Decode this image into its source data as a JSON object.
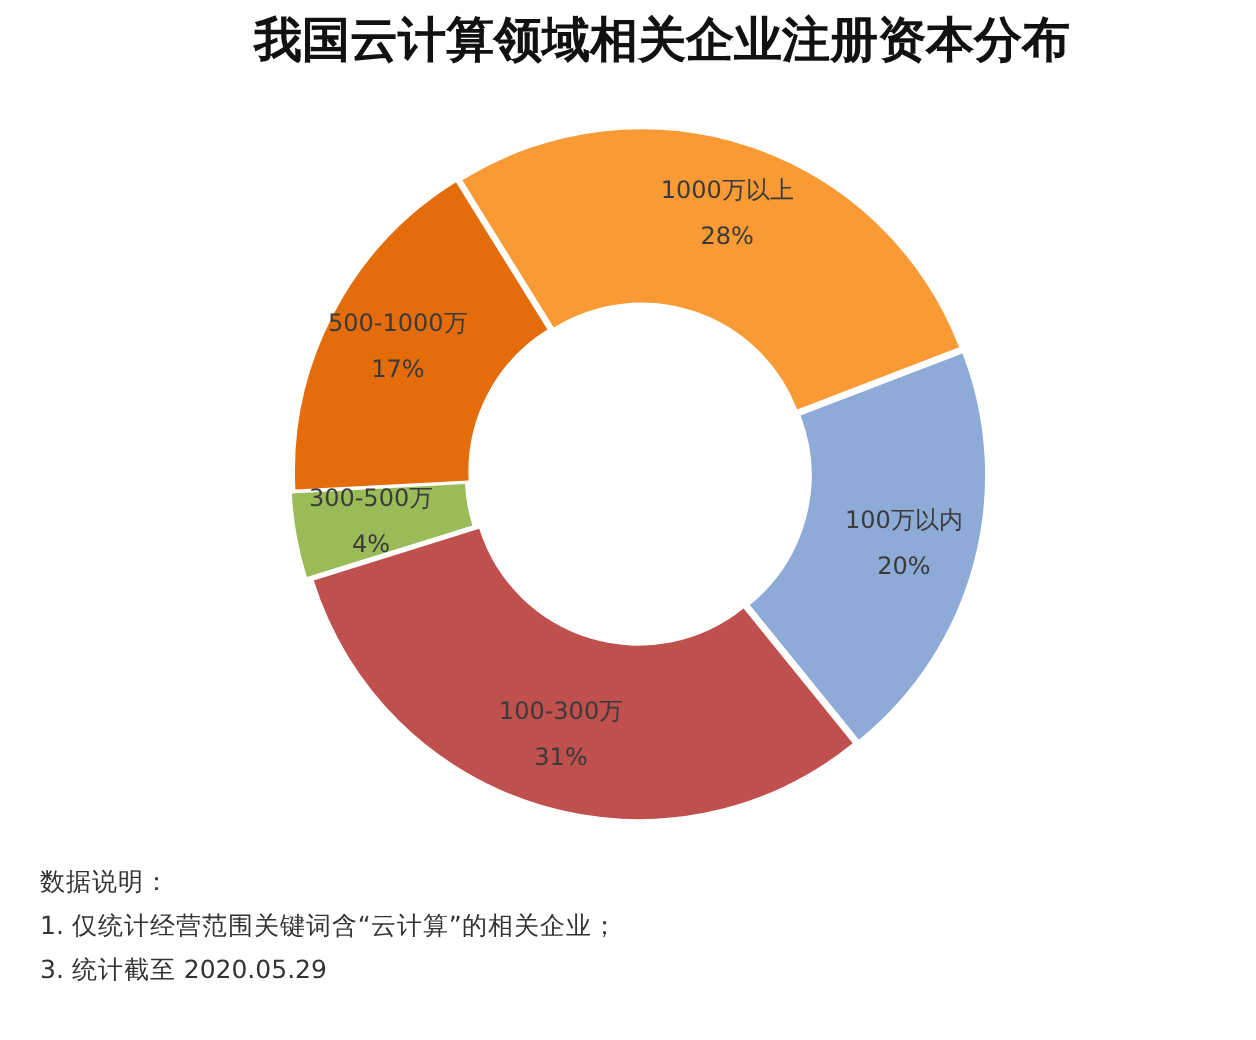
{
  "chart_data": {
    "type": "donut",
    "title": "我国云计算领域相关企业注册资本分布",
    "categories": [
      "100万以内",
      "100-300万",
      "300-500万",
      "500-1000万",
      "1000万以上"
    ],
    "values": [
      20,
      31,
      4,
      17,
      28
    ],
    "colors": [
      "#8eaad6",
      "#c0504d",
      "#9bbb59",
      "#e46c0a",
      "#f99a34"
    ],
    "value_labels": [
      "20%",
      "31%",
      "4%",
      "17%",
      "28%"
    ],
    "annotations": [
      "数据说明：",
      "1. 仅统计经营范围关键词含“云计算”的相关企业；",
      "3. 统计截至 2020.05.29"
    ]
  }
}
